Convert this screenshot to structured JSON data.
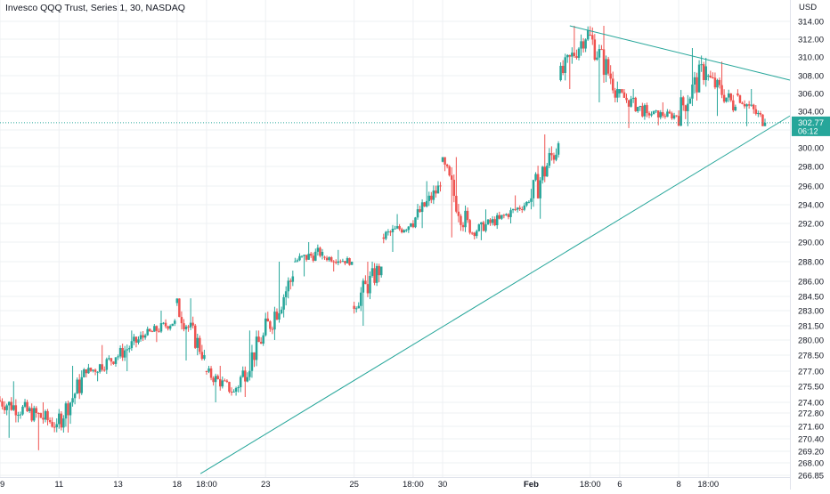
{
  "header": {
    "title": "Invesco QQQ Trust, Series 1, 30, NASDAQ",
    "currency": "USD"
  },
  "price_label": {
    "price": "302.77",
    "countdown": "06:12"
  },
  "colors": {
    "up": "#26a69a",
    "down": "#ef5350",
    "trendline": "#26a69a",
    "grid": "#eef0f3",
    "axis_text": "#131722"
  },
  "chart_data": {
    "type": "candlestick",
    "title": "Invesco QQQ Trust, Series 1, 30, NASDAQ",
    "ylabel": "USD",
    "ylim": [
      266.85,
      315.0
    ],
    "grid": true,
    "y_ticks": [
      "314.00",
      "312.00",
      "310.00",
      "308.00",
      "306.00",
      "304.00",
      "302.00",
      "300.00",
      "298.00",
      "296.00",
      "294.00",
      "292.00",
      "290.00",
      "288.00",
      "286.00",
      "284.50",
      "283.00",
      "281.50",
      "280.00",
      "278.50",
      "277.00",
      "275.50",
      "274.00",
      "272.80",
      "271.60",
      "270.40",
      "269.20",
      "268.00",
      "266.85"
    ],
    "x_ticks": [
      "9",
      "11",
      "13",
      "18",
      "18:00",
      "23",
      "25",
      "18:00",
      "30",
      "Feb",
      "18:00",
      "6",
      "8",
      "18:00"
    ],
    "bars_per_session": 13,
    "sessions": [
      {
        "x_label": "9",
        "o": 274.2,
        "c": 273.0,
        "h": 276.0,
        "l": 270.5
      },
      {
        "x_label": "",
        "o": 273.0,
        "c": 271.8,
        "h": 274.0,
        "l": 269.3
      },
      {
        "x_label": "11",
        "o": 271.8,
        "c": 276.8,
        "h": 277.5,
        "l": 271.0
      },
      {
        "x_label": "",
        "o": 276.8,
        "c": 278.3,
        "h": 279.5,
        "l": 276.0
      },
      {
        "x_label": "13",
        "o": 278.3,
        "c": 280.5,
        "h": 281.0,
        "l": 277.0
      },
      {
        "x_label": "",
        "o": 280.5,
        "c": 282.0,
        "h": 283.0,
        "l": 279.8
      },
      {
        "x_label": "18",
        "o": 283.8,
        "c": 278.5,
        "h": 284.3,
        "l": 278.0
      },
      {
        "x_label": "18:00",
        "o": 277.0,
        "c": 275.0,
        "h": 277.5,
        "l": 274.0
      },
      {
        "x_label": "",
        "o": 275.0,
        "c": 280.5,
        "h": 281.0,
        "l": 274.5
      },
      {
        "x_label": "23",
        "o": 280.5,
        "c": 286.5,
        "h": 288.0,
        "l": 280.0
      },
      {
        "x_label": "",
        "o": 288.0,
        "c": 289.0,
        "h": 290.0,
        "l": 286.5
      },
      {
        "x_label": "",
        "o": 288.5,
        "c": 288.0,
        "h": 289.2,
        "l": 287.0
      },
      {
        "x_label": "25",
        "o": 283.5,
        "c": 287.5,
        "h": 288.0,
        "l": 281.5
      },
      {
        "x_label": "",
        "o": 290.5,
        "c": 292.0,
        "h": 293.0,
        "l": 289.0
      },
      {
        "x_label": "18:00",
        "o": 292.0,
        "c": 296.0,
        "h": 296.5,
        "l": 291.5
      },
      {
        "x_label": "30",
        "o": 298.5,
        "c": 291.0,
        "h": 299.0,
        "l": 290.5
      },
      {
        "x_label": "",
        "o": 291.0,
        "c": 292.5,
        "h": 293.5,
        "l": 290.2
      },
      {
        "x_label": "",
        "o": 292.5,
        "c": 294.3,
        "h": 295.0,
        "l": 292.0
      },
      {
        "x_label": "Feb",
        "o": 294.3,
        "c": 300.5,
        "h": 301.5,
        "l": 292.5
      },
      {
        "x_label": "",
        "o": 307.5,
        "c": 313.0,
        "h": 313.5,
        "l": 306.5
      },
      {
        "x_label": "18:00",
        "o": 312.5,
        "c": 306.5,
        "h": 313.5,
        "l": 305.0
      },
      {
        "x_label": "6",
        "o": 306.0,
        "c": 303.8,
        "h": 306.5,
        "l": 302.2
      },
      {
        "x_label": "",
        "o": 303.8,
        "c": 303.5,
        "h": 305.0,
        "l": 302.5
      },
      {
        "x_label": "8",
        "o": 303.5,
        "c": 309.0,
        "h": 311.0,
        "l": 302.4
      },
      {
        "x_label": "18:00",
        "o": 308.0,
        "c": 304.5,
        "h": 309.5,
        "l": 303.5
      },
      {
        "x_label": "",
        "o": 306.0,
        "c": 302.77,
        "h": 306.5,
        "l": 302.4
      }
    ],
    "trendlines": [
      {
        "label": "upper",
        "from": {
          "x_label": "Feb",
          "y": 313.5
        },
        "to": {
          "y": 307.5
        }
      },
      {
        "label": "lower",
        "from": {
          "x_label": "",
          "y": 267.0
        },
        "to": {
          "y": 303.5
        }
      }
    ],
    "last_price": 302.77
  }
}
